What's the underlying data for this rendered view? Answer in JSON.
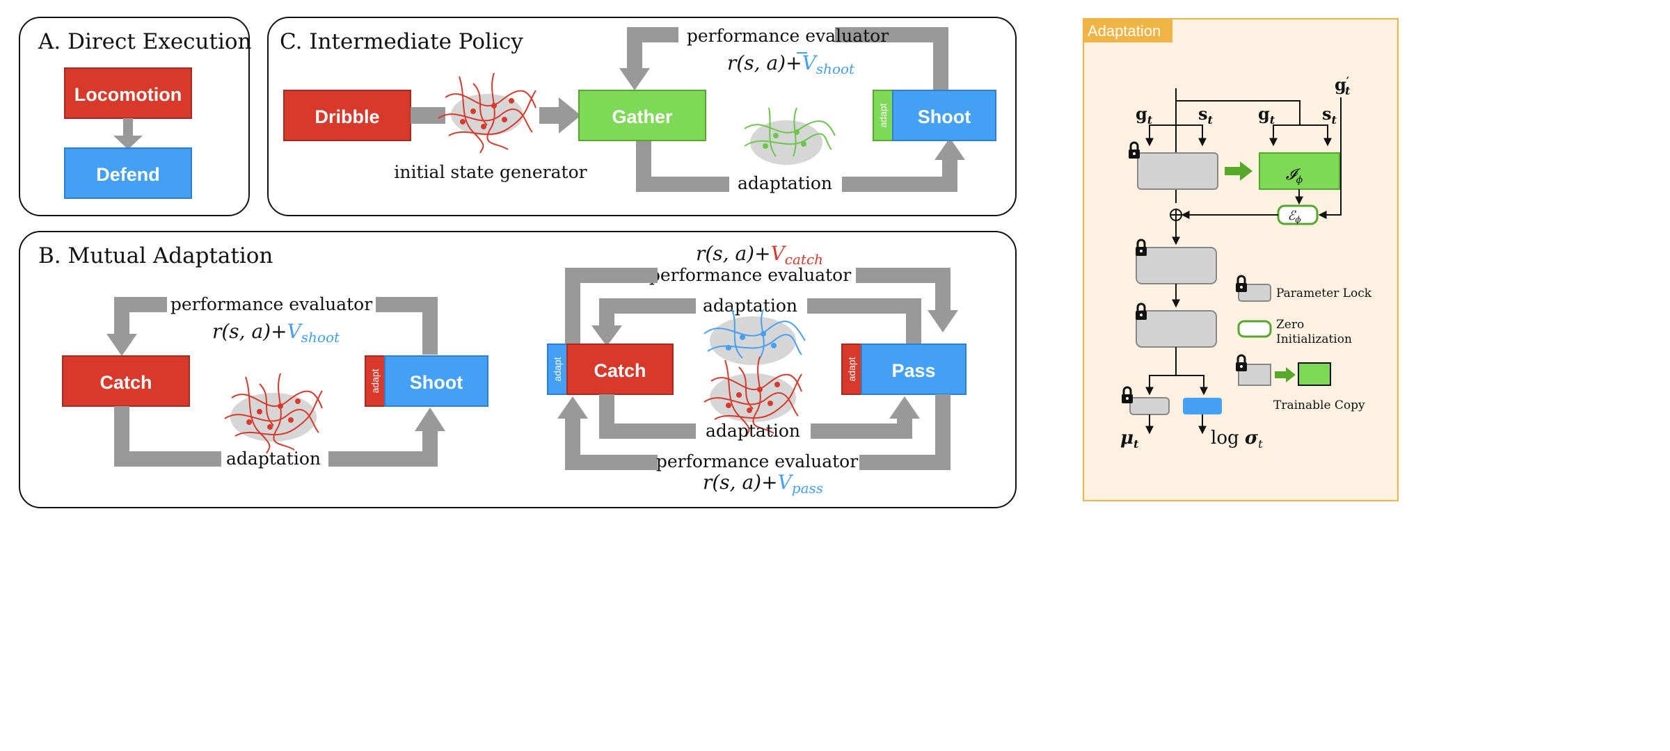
{
  "colors": {
    "red": "#d9392b",
    "green": "#7ed957",
    "blue": "#44a0f5",
    "gray": "#999999",
    "panel_bg": "#fdf1e1",
    "panel_border": "#f0b445"
  },
  "panel_a": {
    "title": "A. Direct Execution",
    "box_top": "Locomotion",
    "box_bottom": "Defend"
  },
  "panel_c": {
    "title": "C. Intermediate Policy",
    "dribble": "Dribble",
    "gather": "Gather",
    "shoot": "Shoot",
    "adapt": "adapt",
    "performance_evaluator": "performance evaluator",
    "reward_prefix": "r(s, a)+",
    "value_term": "V",
    "value_sub": "shoot",
    "initial_state_generator": "initial state generator",
    "adaptation": "adaptation"
  },
  "panel_b": {
    "title": "B. Mutual Adaptation",
    "left": {
      "catch": "Catch",
      "shoot": "Shoot",
      "adapt": "adapt",
      "performance_evaluator": "performance evaluator",
      "reward_prefix": "r(s, a)+",
      "value_term": "V",
      "value_sub": "shoot",
      "adaptation": "adaptation"
    },
    "right": {
      "catch": "Catch",
      "pass": "Pass",
      "adapt_catch": "adapt",
      "adapt_pass": "adapt",
      "top_reward_prefix": "r(s, a)+",
      "top_value_term": "V",
      "top_value_sub": "catch",
      "top_evaluator": "performance evaluator",
      "inner_top_adaptation": "adaptation",
      "inner_bottom_adaptation": "adaptation",
      "bottom_evaluator": "performance evaluator",
      "bottom_reward_prefix": "r(s, a)+",
      "bottom_value_term": "V",
      "bottom_value_sub": "pass"
    }
  },
  "adaptation_panel": {
    "tag": "Adaptation",
    "g_t": "g",
    "s_t": "s",
    "g_prime": "g",
    "sub_t": "t",
    "prime": "′",
    "I_phi": "𝓘",
    "E_phi": "ℰ",
    "sub_phi": "ϕ",
    "mu": "μ",
    "log_sigma_prefix": "log ",
    "sigma": "σ",
    "legend": {
      "parameter_lock": "Parameter Lock",
      "zero_init_line1": "Zero",
      "zero_init_line2": "Initialization",
      "trainable_copy": "Trainable Copy"
    }
  }
}
